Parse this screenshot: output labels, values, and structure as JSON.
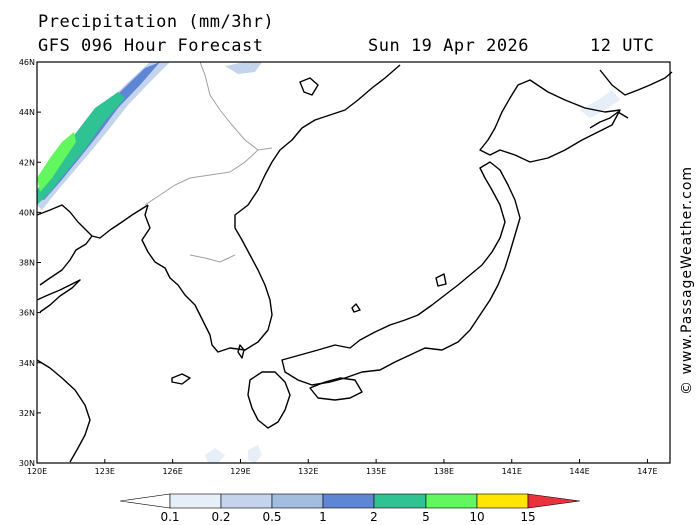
{
  "header": {
    "title": "Precipitation (mm/3hr)",
    "subtitle": "GFS 096 Hour Forecast",
    "date": "Sun 19 Apr 2026",
    "time": "12 UTC"
  },
  "copyright": "© www.PassageWeather.com",
  "map": {
    "lon_range": [
      120,
      148
    ],
    "lat_range": [
      30,
      46
    ],
    "lon_labels": [
      "120E",
      "123E",
      "126E",
      "129E",
      "132E",
      "135E",
      "138E",
      "141E",
      "144E",
      "147E"
    ],
    "lat_labels": [
      "46N",
      "44N",
      "42N",
      "40N",
      "38N",
      "36N",
      "34N",
      "32N",
      "30N"
    ]
  },
  "colorbar": {
    "labels": [
      "0.1",
      "0.2",
      "0.5",
      "1",
      "2",
      "5",
      "10",
      "15"
    ],
    "colors": [
      "#ffffff",
      "#e6eef8",
      "#c3d4ec",
      "#a3bde0",
      "#5e86d4",
      "#2fc292",
      "#62f75e",
      "#ffe500",
      "#ff9e00",
      "#e8323c"
    ]
  }
}
